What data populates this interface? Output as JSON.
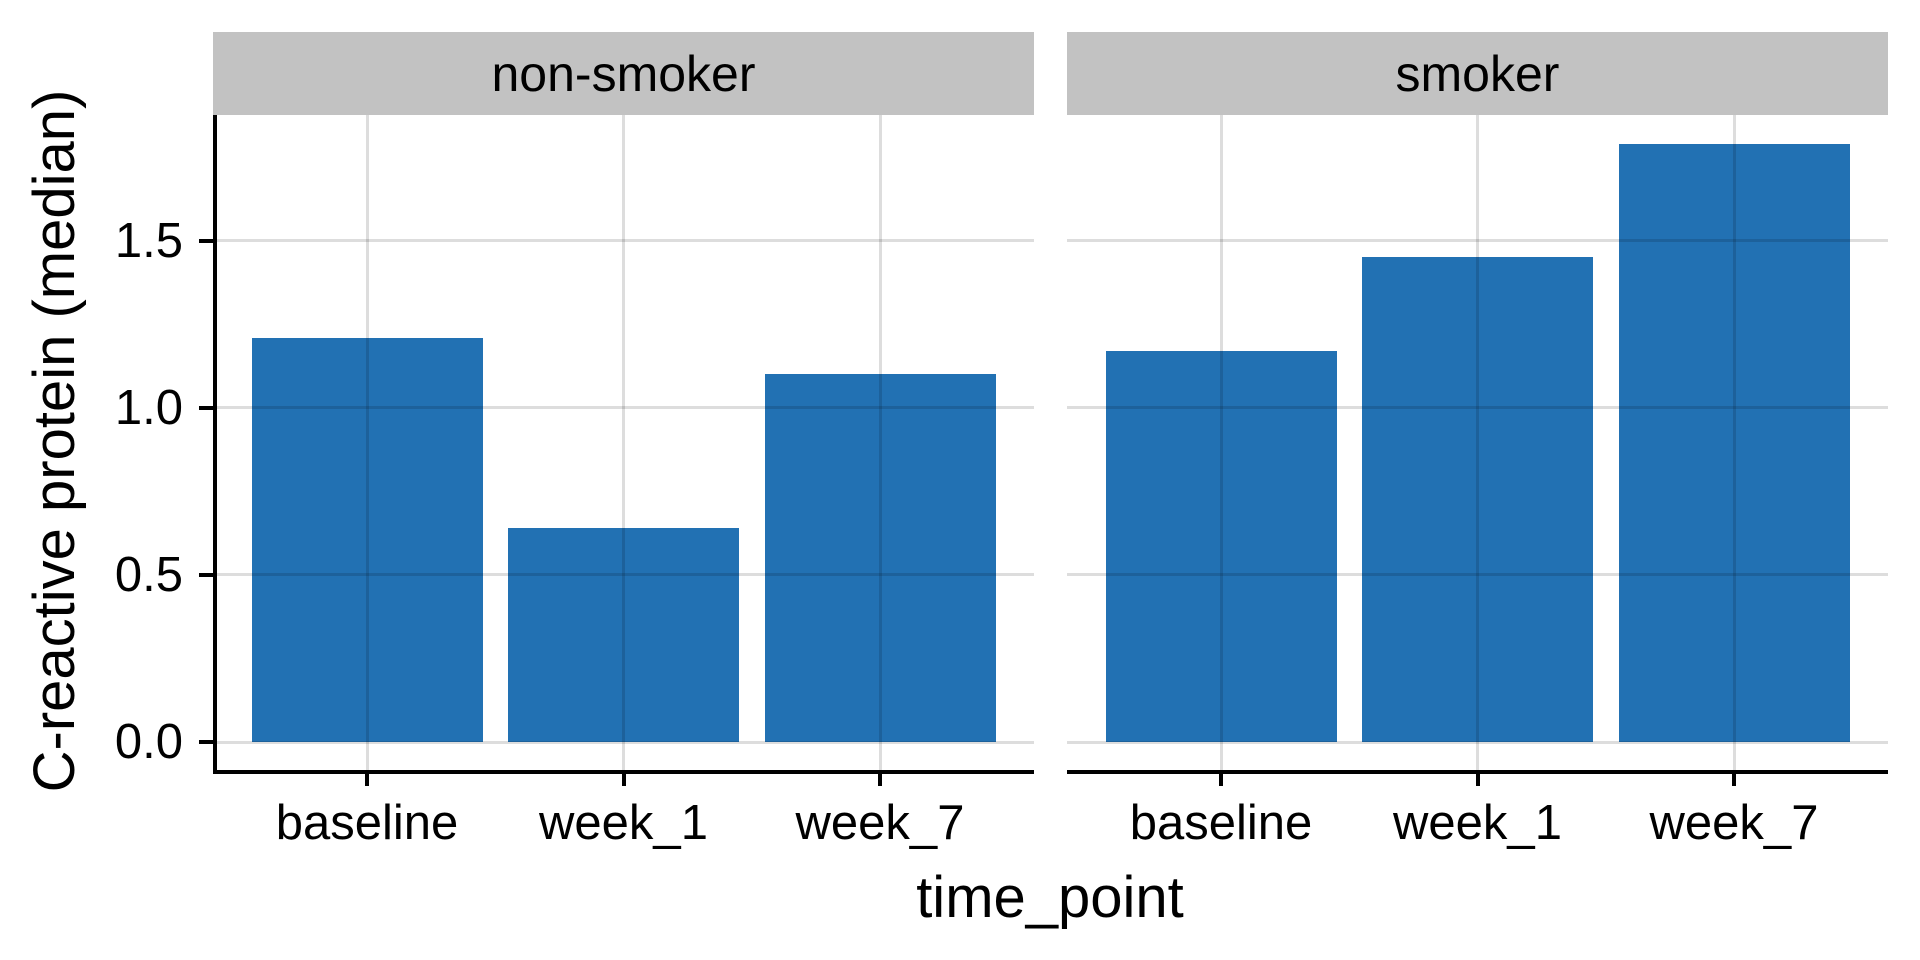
{
  "chart_data": {
    "type": "bar",
    "title": "",
    "xlabel": "time_point",
    "ylabel": "C-reactive protein (median)",
    "categories": [
      "baseline",
      "week_1",
      "week_7"
    ],
    "facets": [
      {
        "label": "non-smoker",
        "values": [
          1.21,
          0.64,
          1.1
        ]
      },
      {
        "label": "smoker",
        "values": [
          1.17,
          1.45,
          1.79
        ]
      }
    ],
    "yticks": [
      0.0,
      0.5,
      1.0,
      1.5
    ],
    "ytick_labels": [
      "0.0",
      "0.5",
      "1.0",
      "1.5"
    ],
    "ylim": [
      -0.09,
      1.88
    ],
    "grid": true,
    "legend_position": "none",
    "colors": {
      "bar_fill": "#2271B3",
      "strip_fill": "#C2C2C2",
      "gridline": "#DCDCDC",
      "axis_text": "#000000",
      "axis_line": "#000000",
      "panel_background": "#FFFFFF"
    }
  }
}
